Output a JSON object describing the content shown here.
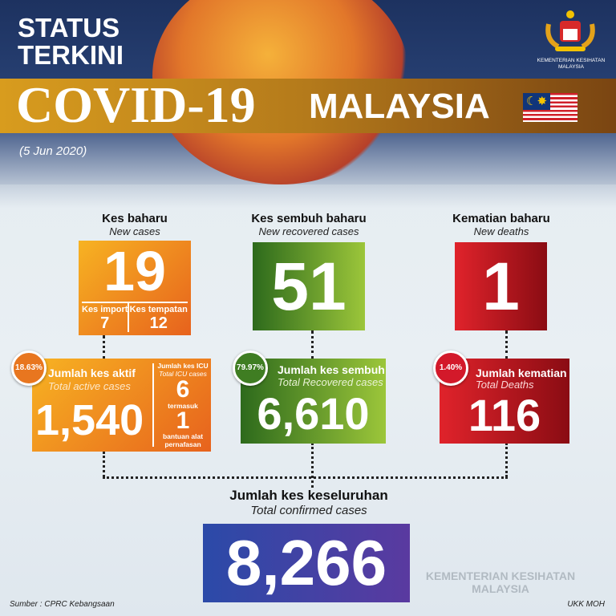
{
  "header": {
    "status_line1": "STATUS",
    "status_line2": "TERKINI",
    "title_main": "COVID-19",
    "title_country": "MALAYSIA",
    "date": "(5 Jun 2020)",
    "logo_text": "KEMENTERIAN KESIHATAN MALAYSIA",
    "flag": "malaysia-flag-icon"
  },
  "new_cases": {
    "label": "Kes baharu",
    "sublabel": "New cases",
    "value": "19",
    "import_label": "Kes import",
    "import_value": "7",
    "local_label": "Kes tempatan",
    "local_value": "12"
  },
  "new_recovered": {
    "label": "Kes sembuh baharu",
    "sublabel": "New recovered cases",
    "value": "51"
  },
  "new_deaths": {
    "label": "Kematian baharu",
    "sublabel": "New deaths",
    "value": "1"
  },
  "active": {
    "percent": "18.63%",
    "label": "Jumlah kes aktif",
    "sublabel": "Total active cases",
    "value": "1,540",
    "icu_label": "Jumlah kes ICU",
    "icu_sublabel": "Total ICU cases",
    "icu_value": "6",
    "including": "termasuk",
    "vent_value": "1",
    "vent_label": "bantuan alat pernafasan"
  },
  "recovered": {
    "percent": "79.97%",
    "label": "Jumlah kes sembuh",
    "sublabel": "Total Recovered cases",
    "value": "6,610"
  },
  "deaths": {
    "percent": "1.40%",
    "label": "Jumlah kematian",
    "sublabel": "Total Deaths",
    "value": "116"
  },
  "total": {
    "label": "Jumlah kes keseluruhan",
    "sublabel": "Total confirmed cases",
    "value": "8,266"
  },
  "footer": {
    "source": "Sumber : CPRC Kebangsaan",
    "credit": "UKK MOH",
    "watermark": "KEMENTERIAN KESIHATAN MALAYSIA"
  },
  "colors": {
    "orange": "#f08a1f",
    "green": "#4f8a25",
    "red": "#d3192a",
    "blue": "#2e4aa6",
    "navy": "#1d3260"
  }
}
